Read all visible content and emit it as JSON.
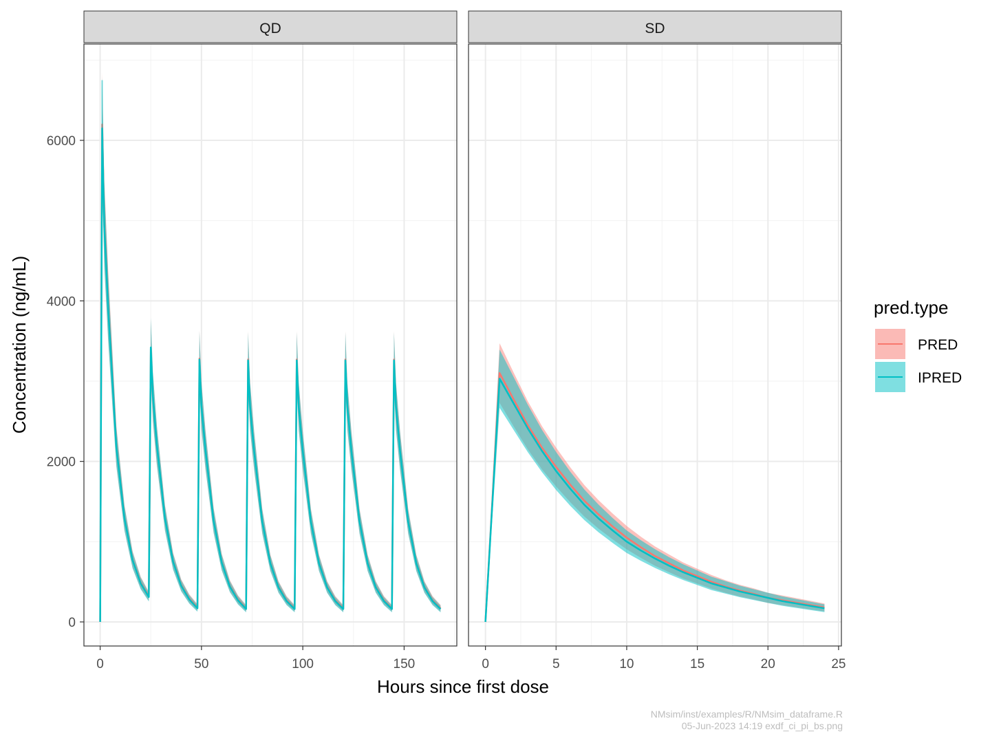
{
  "chart_data": {
    "type": "line",
    "xlabel": "Hours since first dose",
    "ylabel": "Concentration (ng/mL)",
    "y_ticks": [
      0,
      2000,
      4000,
      6000
    ],
    "ylim": [
      -300,
      7200
    ],
    "grid": true,
    "legend": {
      "title": "pred.type",
      "position": "right",
      "entries": [
        {
          "name": "PRED",
          "color": "#F8766D"
        },
        {
          "name": "IPRED",
          "color": "#00BFC4"
        }
      ]
    },
    "panels": [
      {
        "name": "QD",
        "xlim": [
          -8,
          176
        ],
        "x_ticks": [
          0,
          50,
          100,
          150
        ],
        "series": [
          {
            "name": "PRED",
            "x": [
              0,
              1,
              2,
              4,
              8,
              12,
              16,
              20,
              24,
              25,
              26,
              28,
              32,
              36,
              40,
              44,
              48,
              49,
              50,
              52,
              56,
              60,
              64,
              68,
              72,
              73,
              74,
              76,
              80,
              84,
              88,
              92,
              96,
              97,
              98,
              100,
              104,
              108,
              112,
              116,
              120,
              121,
              122,
              124,
              128,
              132,
              136,
              140,
              144,
              145,
              146,
              148,
              152,
              156,
              160,
              164,
              168
            ],
            "values": [
              0,
              6200,
              5000,
              3950,
              2200,
              1300,
              780,
              490,
              320,
              3400,
              2800,
              2200,
              1300,
              760,
              460,
              290,
              180,
              3280,
              2700,
              2150,
              1270,
              750,
              450,
              280,
              170,
              3270,
              2690,
              2140,
              1260,
              740,
              440,
              270,
              170,
              3270,
              2690,
              2140,
              1260,
              740,
              440,
              270,
              170,
              3270,
              2690,
              2140,
              1260,
              740,
              440,
              270,
              170,
              3270,
              2690,
              2140,
              1260,
              740,
              440,
              270,
              170
            ]
          },
          {
            "name": "IPRED",
            "x": [
              0,
              1,
              2,
              4,
              8,
              12,
              16,
              20,
              24,
              25,
              26,
              28,
              32,
              36,
              40,
              44,
              48,
              49,
              50,
              52,
              56,
              60,
              64,
              68,
              72,
              73,
              74,
              76,
              80,
              84,
              88,
              92,
              96,
              97,
              98,
              100,
              104,
              108,
              112,
              116,
              120,
              121,
              122,
              124,
              128,
              132,
              136,
              140,
              144,
              145,
              146,
              148,
              152,
              156,
              160,
              164,
              168
            ],
            "values": [
              0,
              6150,
              4950,
              3900,
              2180,
              1290,
              770,
              480,
              310,
              3420,
              2810,
              2200,
              1290,
              750,
              450,
              280,
              170,
              3270,
              2690,
              2140,
              1260,
              740,
              440,
              270,
              160,
              3260,
              2680,
              2130,
              1250,
              730,
              430,
              260,
              160,
              3260,
              2680,
              2130,
              1250,
              730,
              430,
              260,
              160,
              3260,
              2680,
              2130,
              1250,
              730,
              430,
              260,
              160,
              3260,
              2680,
              2130,
              1250,
              730,
              430,
              260,
              160
            ]
          }
        ],
        "interval_max": 6750
      },
      {
        "name": "SD",
        "xlim": [
          -1.2,
          25.2
        ],
        "x_ticks": [
          0,
          5,
          10,
          15,
          20,
          25
        ],
        "series": [
          {
            "name": "PRED",
            "x": [
              0,
              1,
              2,
              3,
              4,
              5,
              6,
              7,
              8,
              9,
              10,
              11,
              12,
              13,
              14,
              15,
              16,
              17,
              18,
              19,
              20,
              21,
              22,
              23,
              24
            ],
            "values": [
              0,
              3100,
              2770,
              2450,
              2170,
              1930,
              1710,
              1510,
              1340,
              1190,
              1050,
              930,
              820,
              730,
              640,
              570,
              500,
              440,
              390,
              350,
              300,
              270,
              240,
              210,
              180
            ]
          },
          {
            "name": "IPRED",
            "x": [
              0,
              1,
              2,
              3,
              4,
              5,
              6,
              7,
              8,
              9,
              10,
              11,
              12,
              13,
              14,
              15,
              16,
              17,
              18,
              19,
              20,
              21,
              22,
              23,
              24
            ],
            "values": [
              0,
              3030,
              2720,
              2410,
              2130,
              1880,
              1660,
              1460,
              1290,
              1140,
              1000,
              890,
              790,
              700,
              620,
              550,
              480,
              430,
              380,
              340,
              300,
              260,
              230,
              200,
              170
            ]
          }
        ]
      }
    ]
  },
  "footer": {
    "line1": "NMsim/inst/examples/R/NMsim_dataframe.R",
    "line2": "05-Jun-2023 14:19 exdf_ci_pi_bs.png"
  }
}
